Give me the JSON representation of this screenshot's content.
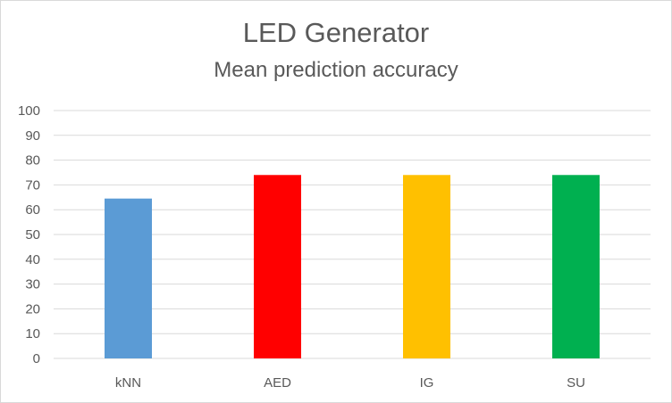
{
  "chart_data": {
    "type": "bar",
    "title": "LED Generator",
    "subtitle": "Mean prediction accuracy",
    "categories": [
      "kNN",
      "AED",
      "IG",
      "SU"
    ],
    "values": [
      64.5,
      74,
      74,
      74
    ],
    "colors": [
      "#5b9bd5",
      "#ff0000",
      "#ffc000",
      "#00b050"
    ],
    "ylim": [
      0,
      100
    ],
    "yticks": [
      0,
      10,
      20,
      30,
      40,
      50,
      60,
      70,
      80,
      90,
      100
    ],
    "grid": true,
    "legend": "none"
  }
}
